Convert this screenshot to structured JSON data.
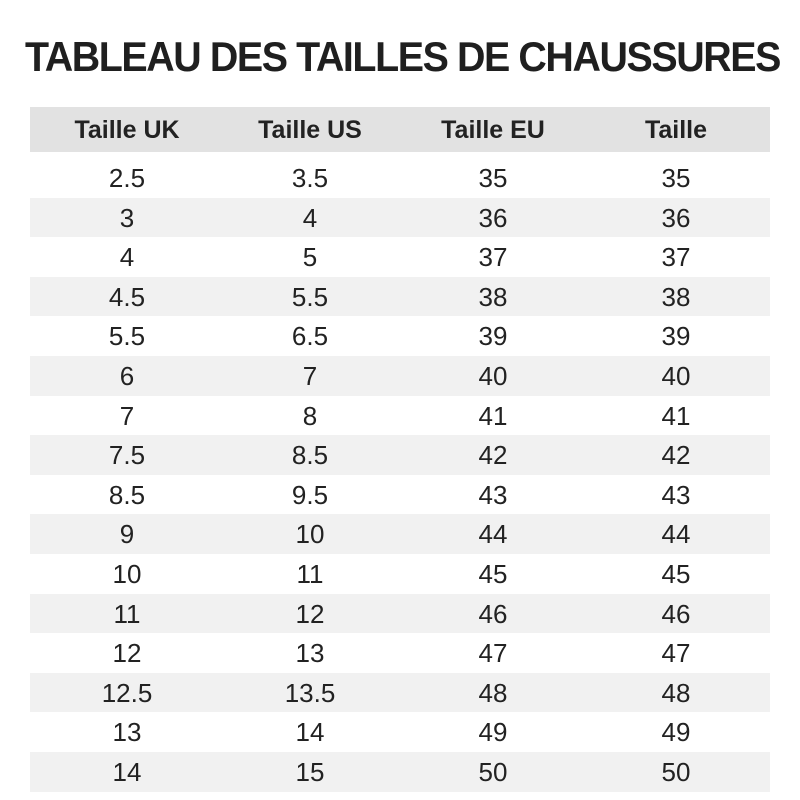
{
  "title": "TABLEAU DES TAILLES DE CHAUSSURES",
  "table": {
    "header": [
      "Taille UK",
      "Taille US",
      "Taille EU",
      "Taille"
    ],
    "rows": [
      [
        2.5,
        3.5,
        35,
        35
      ],
      [
        3,
        4,
        36,
        36
      ],
      [
        4,
        5,
        37,
        37
      ],
      [
        4.5,
        5.5,
        38,
        38
      ],
      [
        5.5,
        6.5,
        39,
        39
      ],
      [
        6,
        7,
        40,
        40
      ],
      [
        7,
        8,
        41,
        41
      ],
      [
        7.5,
        8.5,
        42,
        42
      ],
      [
        8.5,
        9.5,
        43,
        43
      ],
      [
        9,
        10,
        44,
        44
      ],
      [
        10,
        11,
        45,
        45
      ],
      [
        11,
        12,
        46,
        46
      ],
      [
        12,
        13,
        47,
        47
      ],
      [
        12.5,
        13.5,
        48,
        48
      ],
      [
        13,
        14,
        49,
        49
      ],
      [
        14,
        15,
        50,
        50
      ]
    ]
  }
}
